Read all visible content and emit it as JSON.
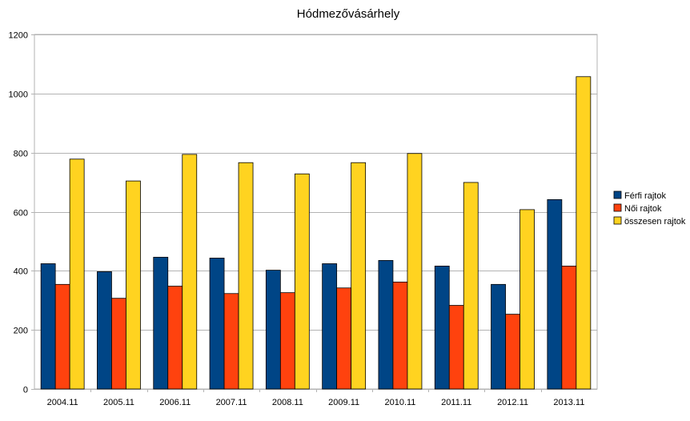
{
  "chart_data": {
    "type": "bar",
    "title": "Hódmezővásárhely",
    "xlabel": "",
    "ylabel": "",
    "categories": [
      "2004.11",
      "2005.11",
      "2006.11",
      "2007.11",
      "2008.11",
      "2009.11",
      "2010.11",
      "2011.11",
      "2012.11",
      "2013.11"
    ],
    "series": [
      {
        "name": "Férfi rajtok",
        "color": "#004586",
        "values": [
          424,
          397,
          446,
          443,
          402,
          424,
          435,
          416,
          354,
          641
        ]
      },
      {
        "name": "Női rajtok",
        "color": "#ff420e",
        "values": [
          354,
          307,
          348,
          323,
          326,
          342,
          362,
          283,
          253,
          416
        ]
      },
      {
        "name": "összesen rajtok",
        "color": "#ffd320",
        "values": [
          778,
          704,
          794,
          766,
          728,
          766,
          797,
          699,
          607,
          1057
        ]
      }
    ],
    "ylim": [
      0,
      1200
    ],
    "yticks": [
      0,
      200,
      400,
      600,
      800,
      1000,
      1200
    ],
    "grid": true,
    "legend_position": "right"
  }
}
